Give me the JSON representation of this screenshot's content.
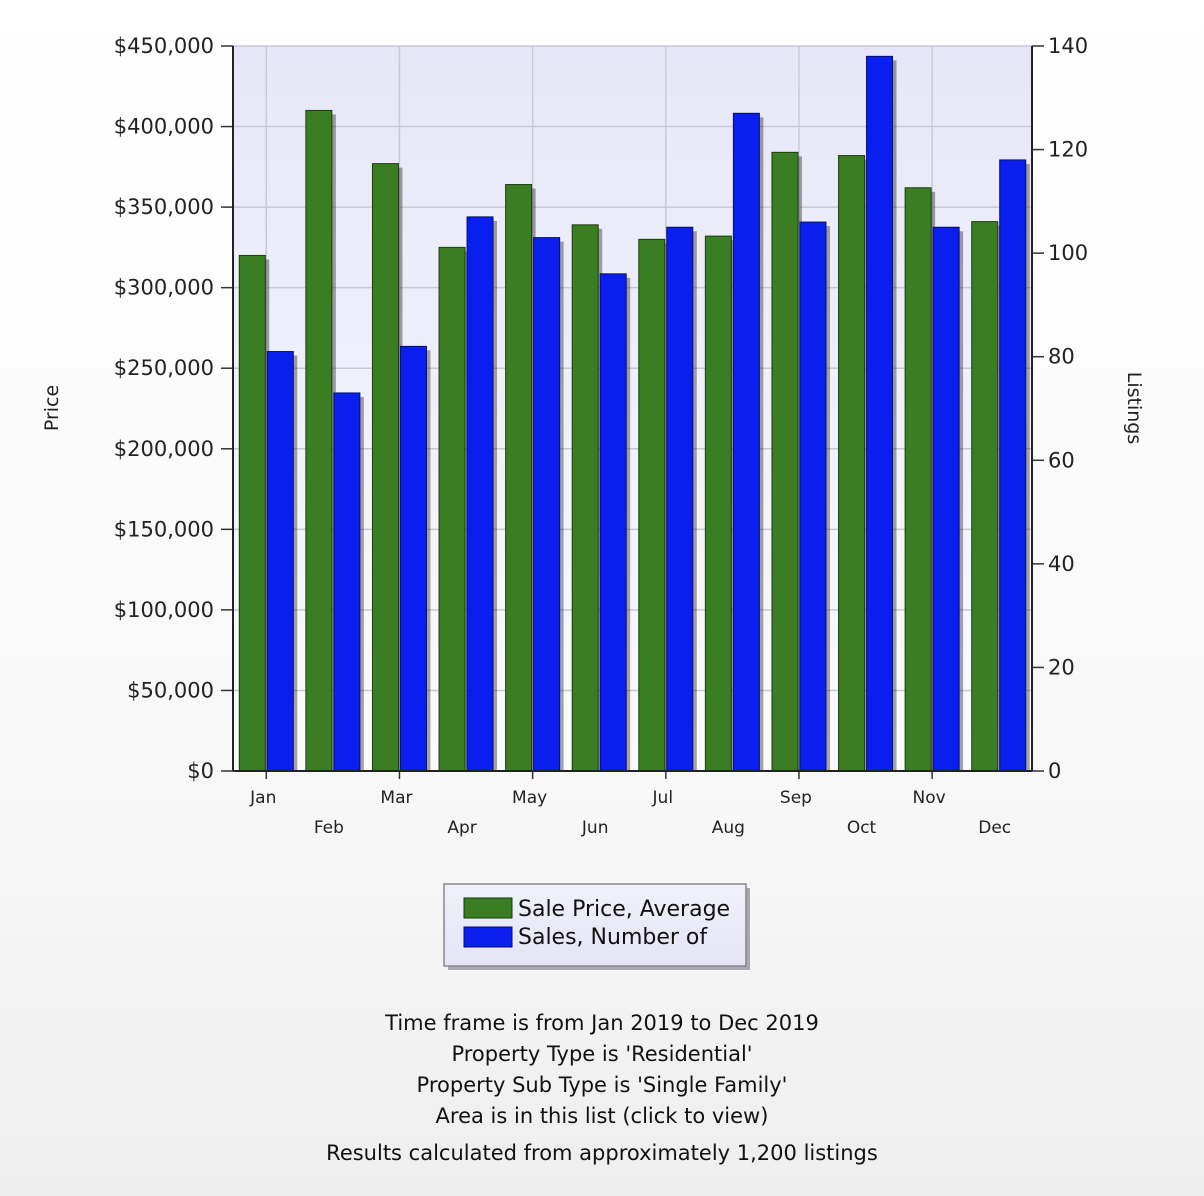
{
  "chart_data": {
    "type": "bar",
    "categories": [
      "Jan",
      "Feb",
      "Mar",
      "Apr",
      "May",
      "Jun",
      "Jul",
      "Aug",
      "Sep",
      "Oct",
      "Nov",
      "Dec"
    ],
    "series": [
      {
        "name": "Sale Price, Average",
        "axis": "left",
        "color": "#3a7d22",
        "values": [
          320000,
          410000,
          377000,
          325000,
          364000,
          339000,
          330000,
          332000,
          384000,
          382000,
          362000,
          341000
        ]
      },
      {
        "name": "Sales, Number of",
        "axis": "right",
        "color": "#0a1ef0",
        "values": [
          81,
          73,
          82,
          107,
          103,
          96,
          105,
          127,
          106,
          138,
          105,
          118
        ]
      }
    ],
    "ylabel": "Price",
    "ylabel_right": "Listings",
    "ylim": [
      0,
      450000
    ],
    "ylim_right": [
      0,
      140
    ],
    "yticks": [
      "$0",
      "$50,000",
      "$100,000",
      "$150,000",
      "$200,000",
      "$250,000",
      "$300,000",
      "$350,000",
      "$400,000",
      "$450,000"
    ],
    "yticks_right": [
      "0",
      "20",
      "40",
      "60",
      "80",
      "100",
      "120",
      "140"
    ],
    "grid": true,
    "legend_position": "bottom"
  },
  "notes": {
    "timeframe": "Time frame is from Jan 2019 to Dec 2019",
    "property_type": "Property Type is 'Residential'",
    "property_sub_type": "Property Sub Type is 'Single Family'",
    "area": "Area is in this list (click to view)",
    "results": "Results calculated from approximately 1,200 listings"
  }
}
